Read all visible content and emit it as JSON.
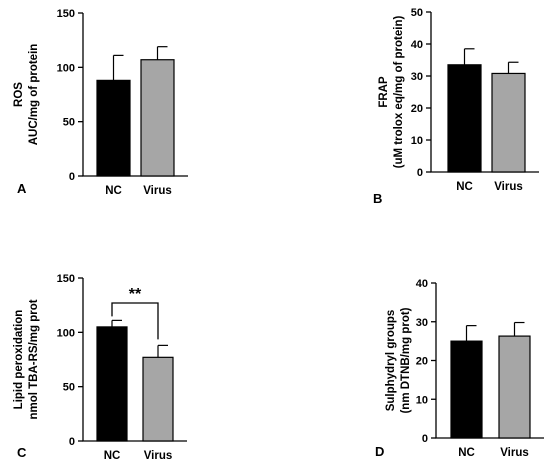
{
  "chart_data": [
    {
      "panel_label": "A",
      "type": "bar",
      "categories": [
        "NC",
        "Virus"
      ],
      "values": [
        88,
        107
      ],
      "errors": [
        23,
        12
      ],
      "colors": [
        "#000000",
        "#a6a6a6"
      ],
      "ylabel": [
        "ROS",
        "AUC/mg of protein"
      ],
      "ylim": [
        0,
        150
      ],
      "yticks": [
        0,
        50,
        100,
        150
      ]
    },
    {
      "panel_label": "B",
      "type": "bar",
      "categories": [
        "NC",
        "Virus"
      ],
      "values": [
        33.5,
        30.8
      ],
      "errors": [
        5,
        3.5
      ],
      "colors": [
        "#000000",
        "#a6a6a6"
      ],
      "ylabel": [
        "FRAP",
        "(uM trolox eq/mg of protein)"
      ],
      "ylim": [
        0,
        50
      ],
      "yticks": [
        0,
        10,
        20,
        30,
        40,
        50
      ]
    },
    {
      "panel_label": "C",
      "type": "bar",
      "categories": [
        "NC",
        "Virus"
      ],
      "values": [
        105,
        77
      ],
      "errors": [
        6,
        11
      ],
      "colors": [
        "#000000",
        "#a6a6a6"
      ],
      "ylabel": [
        "Lipid peroxidation",
        "nmol TBA-RS/mg prot"
      ],
      "ylim": [
        0,
        150
      ],
      "yticks": [
        0,
        50,
        100,
        150
      ],
      "significance": "**"
    },
    {
      "panel_label": "D",
      "type": "bar",
      "categories": [
        "NC",
        "Virus"
      ],
      "values": [
        25,
        26.3
      ],
      "errors": [
        4,
        3.5
      ],
      "colors": [
        "#000000",
        "#a6a6a6"
      ],
      "ylabel": [
        "Sulphydryl groups",
        "(nm DTNB/mg prot)"
      ],
      "ylim": [
        0,
        40
      ],
      "yticks": [
        0,
        10,
        20,
        30,
        40
      ]
    }
  ]
}
